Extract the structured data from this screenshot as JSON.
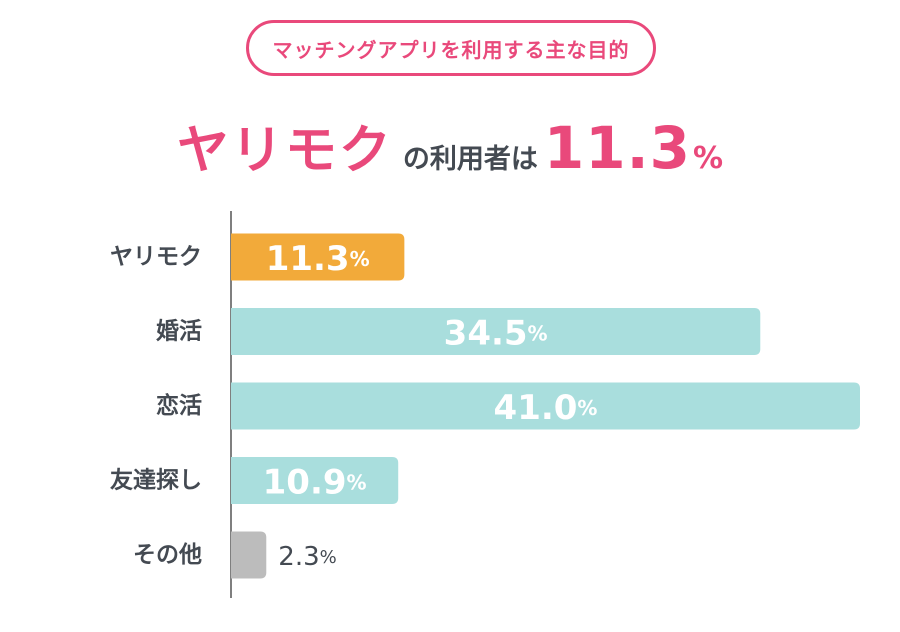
{
  "header": {
    "pill_text": "マッチングアプリを利用する主な目的",
    "headline_part1": "ヤリモク",
    "headline_part2": "の利用者は",
    "headline_value": "11.3",
    "headline_unit": "%"
  },
  "colors": {
    "accent": "#e9497b",
    "highlight_bar": "#f2aa3a",
    "main_bar": "#a9dedd",
    "other_bar": "#bcbcbc",
    "text_dark": "#444a52",
    "axis": "#555555"
  },
  "chart_data": {
    "type": "bar",
    "orientation": "horizontal",
    "categories": [
      "ヤリモク",
      "婚活",
      "恋活",
      "友達探し",
      "その他"
    ],
    "values": [
      11.3,
      34.5,
      41.0,
      10.9,
      2.3
    ],
    "value_labels": [
      "11.3",
      "34.5",
      "41.0",
      "10.9",
      "2.3"
    ],
    "unit": "%",
    "xlim": [
      0,
      41.0
    ],
    "grid": false,
    "legend": "none"
  }
}
